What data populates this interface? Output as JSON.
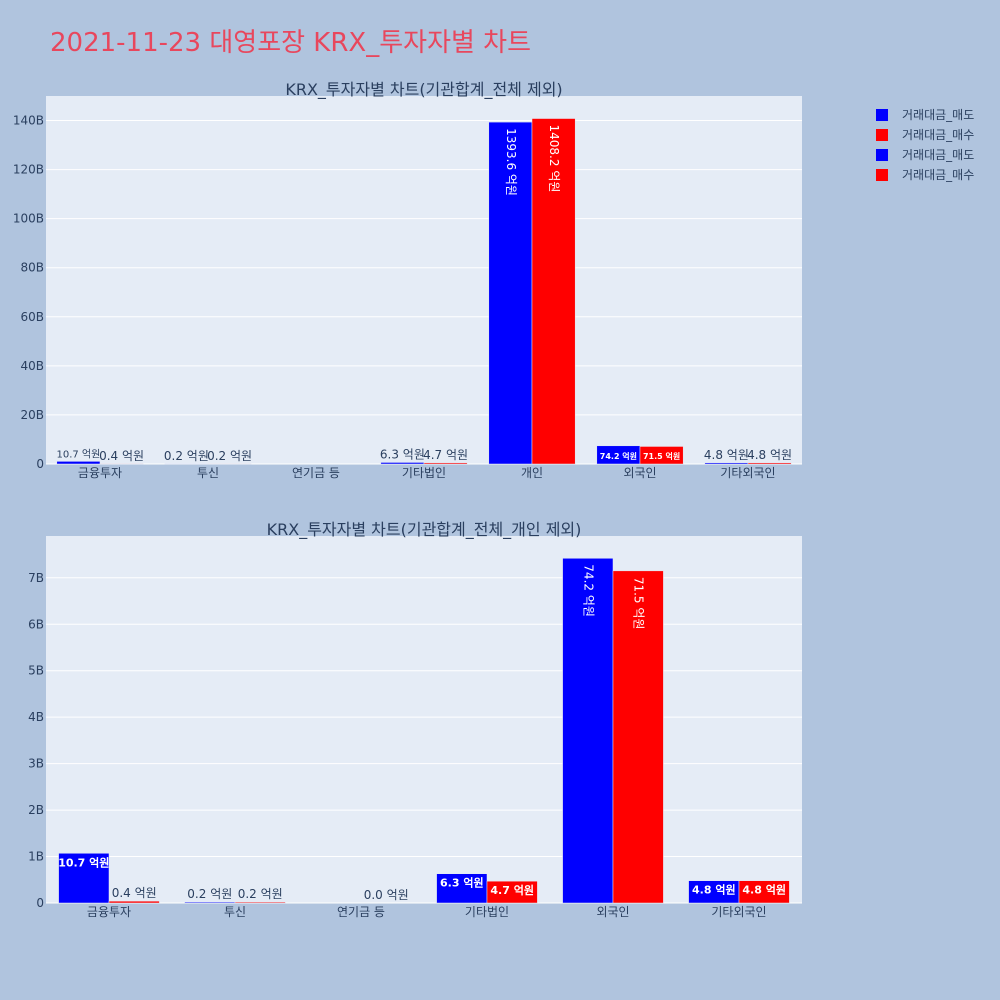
{
  "page": {
    "title": "2021-11-23 대영포장 KRX_투자자별 차트"
  },
  "colors": {
    "sell": "#0000ff",
    "buy": "#ff0000",
    "plot_bg": "#e5ecf6",
    "paper_bg": "#b0c4de",
    "title": "#e8475d"
  },
  "legend": {
    "placement": "top-right",
    "entries": [
      {
        "name": "거래대금_매도",
        "color": "#0000ff"
      },
      {
        "name": "거래대금_매수",
        "color": "#ff0000"
      },
      {
        "name": "거래대금_매도",
        "color": "#0000ff"
      },
      {
        "name": "거래대금_매수",
        "color": "#ff0000"
      }
    ]
  },
  "chart_data": [
    {
      "type": "bar",
      "title": "KRX_투자자별 차트(기관합계_전체 제외)",
      "categories": [
        "금융투자",
        "투신",
        "연기금 등",
        "기타법인",
        "개인",
        "외국인",
        "기타외국인"
      ],
      "ylim": [
        0,
        150000000000
      ],
      "yticks": [
        0,
        20000000000,
        40000000000,
        60000000000,
        80000000000,
        100000000000,
        120000000000,
        140000000000
      ],
      "ytick_labels": [
        "0",
        "20B",
        "40B",
        "60B",
        "80B",
        "100B",
        "120B",
        "140B"
      ],
      "grid": true,
      "series": [
        {
          "name": "거래대금_매도",
          "color": "#0000ff",
          "values": [
            1070000000,
            20000000,
            0,
            630000000,
            139360000000,
            7420000000,
            480000000
          ],
          "labels": [
            "10.7 억원",
            "0.2 억원",
            "",
            "6.3 억원",
            "1393.6 억원",
            "74.2 억원",
            "4.8 억원"
          ]
        },
        {
          "name": "거래대금_매수",
          "color": "#ff0000",
          "values": [
            40000000,
            20000000,
            0,
            470000000,
            140820000000,
            7150000000,
            480000000
          ],
          "labels": [
            "0.4 억원",
            "0.2 억원",
            "",
            "4.7 억원",
            "1408.2 억원",
            "71.5 억원",
            "4.8 억원"
          ]
        }
      ]
    },
    {
      "type": "bar",
      "title": "KRX_투자자별 차트(기관합계_전체_개인 제외)",
      "categories": [
        "금융투자",
        "투신",
        "연기금 등",
        "기타법인",
        "외국인",
        "기타외국인"
      ],
      "ylim": [
        0,
        7900000000
      ],
      "yticks": [
        0,
        1000000000,
        2000000000,
        3000000000,
        4000000000,
        5000000000,
        6000000000,
        7000000000
      ],
      "ytick_labels": [
        "0",
        "1B",
        "2B",
        "3B",
        "4B",
        "5B",
        "6B",
        "7B"
      ],
      "grid": true,
      "series": [
        {
          "name": "거래대금_매도",
          "color": "#0000ff",
          "values": [
            1070000000,
            20000000,
            0,
            630000000,
            7420000000,
            480000000
          ],
          "labels": [
            "10.7 억원",
            "0.2 억원",
            "",
            "6.3 억원",
            "74.2 억원",
            "4.8 억원"
          ]
        },
        {
          "name": "거래대금_매수",
          "color": "#ff0000",
          "values": [
            40000000,
            20000000,
            0,
            470000000,
            7150000000,
            480000000
          ],
          "labels": [
            "0.4 억원",
            "0.2 억원",
            "0.0 억원",
            "4.7 억원",
            "71.5 억원",
            "4.8 억원"
          ]
        }
      ]
    }
  ]
}
